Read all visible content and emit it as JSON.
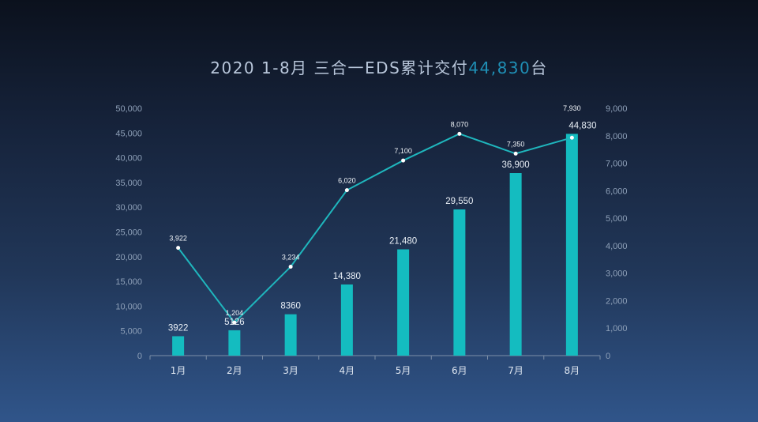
{
  "title": {
    "prefix": "2020 1-8月 三合一EDS累计交付",
    "highlight": "44,830",
    "suffix": "台"
  },
  "colors": {
    "bar": "#14bcc0",
    "line": "#1fb6bd",
    "highlight": "#1f8fb5",
    "axis_text": "#8ea0b8",
    "label_text": "#e8eef5"
  },
  "chart_data": {
    "type": "bar",
    "categories": [
      "1月",
      "2月",
      "3月",
      "4月",
      "5月",
      "6月",
      "7月",
      "8月"
    ],
    "series": [
      {
        "type": "bar",
        "axis": "left",
        "values": [
          3922,
          5126,
          8360,
          14380,
          21480,
          29550,
          36900,
          44830
        ],
        "labels": [
          "3922",
          "5126",
          "8360",
          "14,380",
          "21,480",
          "29,550",
          "36,900",
          "44,830"
        ]
      },
      {
        "type": "line",
        "axis": "right",
        "values": [
          3922,
          1204,
          3234,
          6020,
          7100,
          8070,
          7350,
          7930
        ],
        "labels": [
          "3,922",
          "1,204",
          "3,234",
          "6,020",
          "7,100",
          "8,070",
          "7,350",
          "7,930"
        ]
      }
    ],
    "y_left": {
      "range": [
        0,
        50000
      ],
      "ticks": [
        0,
        5000,
        10000,
        15000,
        20000,
        25000,
        30000,
        35000,
        40000,
        45000,
        50000
      ],
      "tick_labels": [
        "0",
        "5,000",
        "10,000",
        "15,000",
        "20,000",
        "25,000",
        "30,000",
        "35,000",
        "40,000",
        "45,000",
        "50,000"
      ]
    },
    "y_right": {
      "range": [
        0,
        9000
      ],
      "ticks": [
        0,
        1000,
        2000,
        3000,
        4000,
        5000,
        6000,
        7000,
        8000,
        9000
      ],
      "tick_labels": [
        "0",
        "1,000",
        "2,000",
        "3,000",
        "4,000",
        "5,000",
        "6,000",
        "7,000",
        "8,000",
        "9,000"
      ]
    },
    "grid": false,
    "legend": "none"
  }
}
